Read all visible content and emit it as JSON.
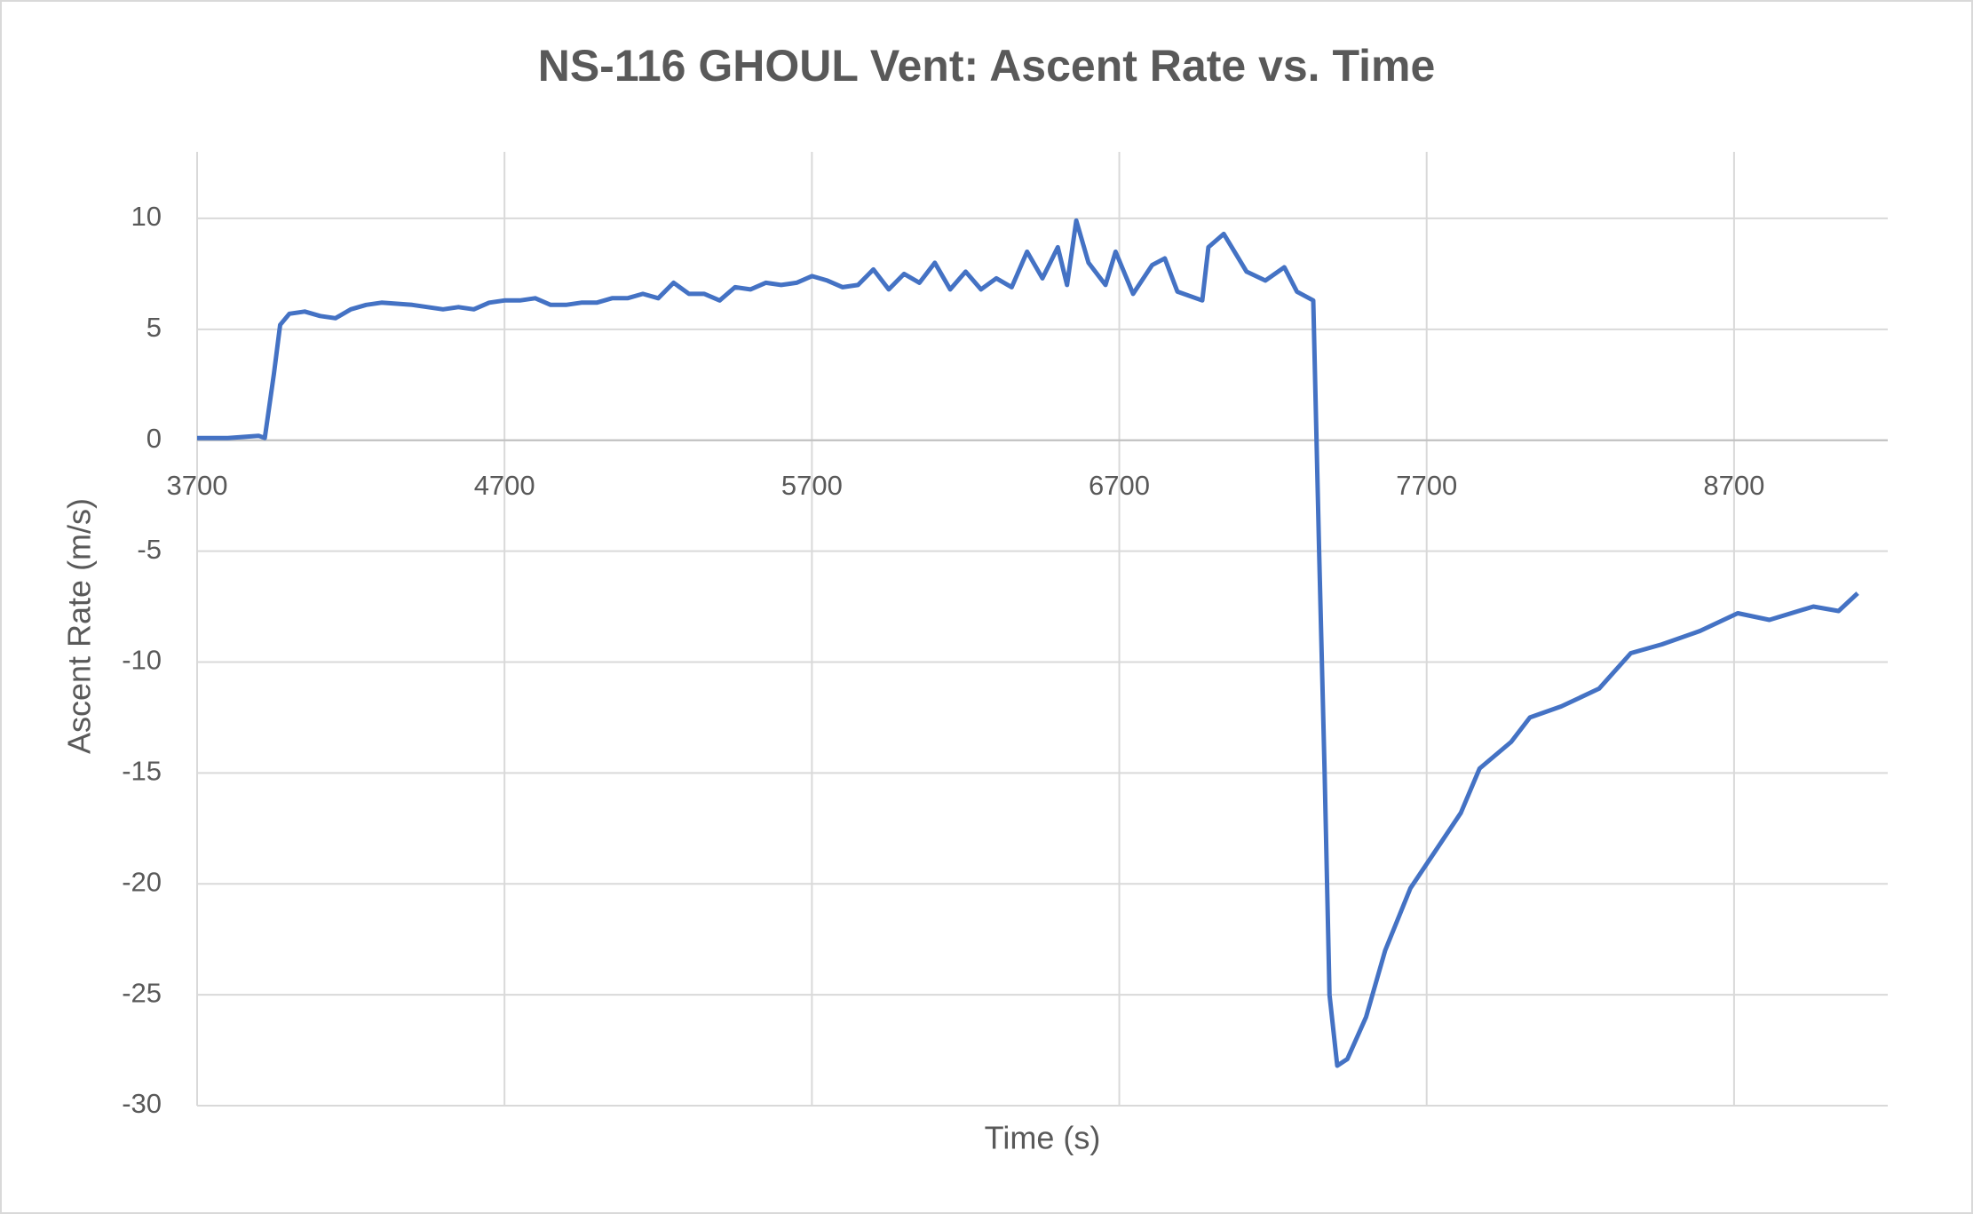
{
  "chart_data": {
    "type": "line",
    "title": "NS-116 GHOUL Vent: Ascent Rate vs. Time",
    "x_label": "Time (s)",
    "y_label": "Ascent Rate (m/s)",
    "color": "#4472c4",
    "grid": true,
    "xlim": [
      3700,
      9200
    ],
    "xticks": [
      3700,
      4700,
      5700,
      6700,
      7700,
      8700
    ],
    "ylim": [
      -30,
      13
    ],
    "yticks": [
      -30,
      -25,
      -20,
      -15,
      -10,
      -5,
      0,
      5,
      10
    ],
    "x": [
      3700,
      3800,
      3900,
      3920,
      3950,
      3970,
      4000,
      4050,
      4100,
      4150,
      4200,
      4250,
      4300,
      4400,
      4450,
      4500,
      4550,
      4600,
      4650,
      4700,
      4750,
      4800,
      4850,
      4900,
      4950,
      5000,
      5050,
      5100,
      5150,
      5200,
      5250,
      5300,
      5350,
      5400,
      5450,
      5500,
      5550,
      5600,
      5650,
      5700,
      5750,
      5800,
      5850,
      5900,
      5950,
      6000,
      6050,
      6100,
      6150,
      6200,
      6250,
      6300,
      6350,
      6400,
      6450,
      6500,
      6530,
      6560,
      6600,
      6655,
      6688,
      6745,
      6807,
      6848,
      6889,
      6970,
      6990,
      7040,
      7114,
      7175,
      7237,
      7278,
      7331,
      7350,
      7368,
      7384,
      7409,
      7442,
      7503,
      7565,
      7647,
      7729,
      7811,
      7872,
      7975,
      8036,
      8138,
      8261,
      8364,
      8466,
      8589,
      8712,
      8815,
      8958,
      9040,
      9102
    ],
    "values": [
      0.1,
      0.1,
      0.2,
      0.1,
      3,
      5.2,
      5.7,
      5.8,
      5.6,
      5.5,
      5.9,
      6.1,
      6.2,
      6.1,
      6.0,
      5.9,
      6.0,
      5.9,
      6.2,
      6.3,
      6.3,
      6.4,
      6.1,
      6.1,
      6.2,
      6.2,
      6.4,
      6.4,
      6.6,
      6.4,
      7.1,
      6.6,
      6.6,
      6.3,
      6.9,
      6.8,
      7.1,
      7.0,
      7.1,
      7.4,
      7.2,
      6.9,
      7.0,
      7.7,
      6.8,
      7.5,
      7.1,
      8.0,
      6.8,
      7.6,
      6.8,
      7.3,
      6.9,
      8.5,
      7.3,
      8.7,
      7.0,
      9.9,
      8.0,
      7.0,
      8.5,
      6.6,
      7.9,
      8.2,
      6.7,
      6.3,
      8.7,
      9.3,
      7.6,
      7.2,
      7.8,
      6.7,
      6.3,
      -5,
      -15,
      -25,
      -28.2,
      -27.9,
      -26,
      -23,
      -20.2,
      -18.5,
      -16.8,
      -14.8,
      -13.6,
      -12.5,
      -12.0,
      -11.2,
      -9.6,
      -9.2,
      -8.6,
      -7.8,
      -8.1,
      -7.5,
      -7.7,
      -6.9
    ]
  }
}
